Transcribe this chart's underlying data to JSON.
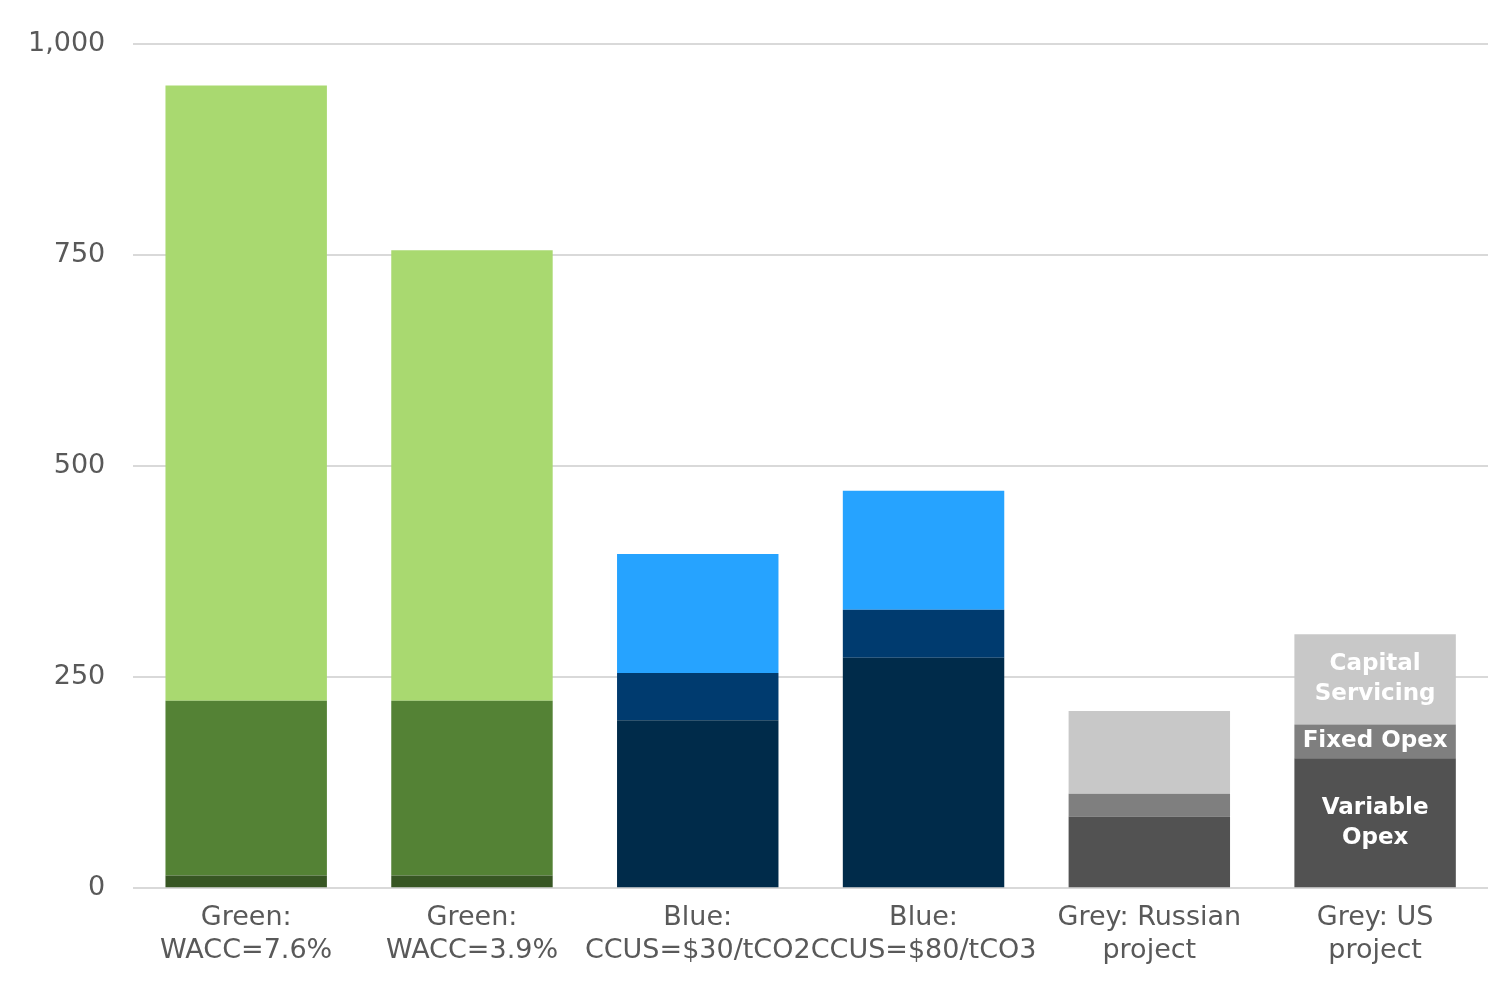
{
  "chart_data": {
    "type": "bar",
    "stacked": true,
    "categories": [
      "Green:\nWACC=7.6%",
      "Green:\nWACC=3.9%",
      "Blue:\nCCUS=$30/tCO2",
      "Blue:\nCCUS=$80/tCO3",
      "Grey: Russian\nproject",
      "Grey: US\nproject"
    ],
    "series": [
      {
        "name": "Variable Opex",
        "colors": [
          "#375623",
          "#375623",
          "#002b4a",
          "#002b4a",
          "#525252",
          "#525252"
        ],
        "values": [
          15,
          15,
          199,
          273,
          85,
          154
        ]
      },
      {
        "name": "Fixed Opex",
        "colors": [
          "#548235",
          "#548235",
          "#003b6f",
          "#003b6f",
          "#7f7f7f",
          "#7f7f7f"
        ],
        "values": [
          207,
          207,
          56,
          57,
          27,
          40
        ]
      },
      {
        "name": "Capital Servicing",
        "colors": [
          "#a9d970",
          "#a9d970",
          "#26a3ff",
          "#26a3ff",
          "#c8c8c8",
          "#c8c8c8"
        ],
        "values": [
          729,
          534,
          141,
          141,
          98,
          107
        ]
      }
    ],
    "ylim": [
      0,
      1000
    ],
    "yticks": [
      0,
      250,
      500,
      750,
      {
        "value": 1000,
        "label": "1,000"
      }
    ],
    "grid": "y",
    "legend": false
  }
}
